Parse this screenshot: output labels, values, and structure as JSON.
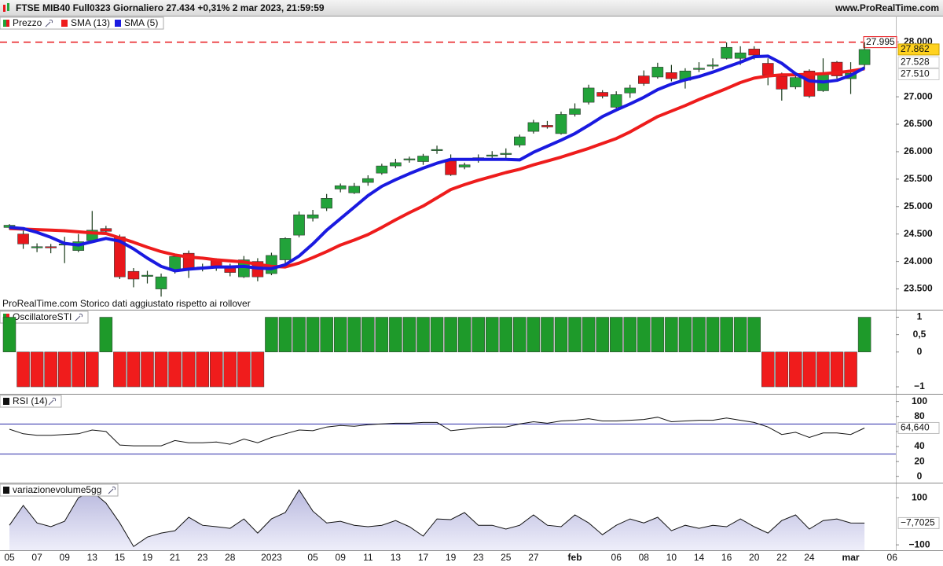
{
  "header": {
    "title": "FTSE MIB40 Full0323 Giornaliero 27.434 +0,31% 2 mar 2023, 21:59:59",
    "site": "www.ProRealTime.com",
    "note": "ProRealTime.com  Storico dati aggiustato rispetto ai rollover"
  },
  "chart_data": [
    {
      "type": "candlestick",
      "title": "Prezzo",
      "up_color": "#22a33a",
      "down_color": "#e8161b",
      "categories": [
        "05",
        null,
        "07",
        null,
        "09",
        null,
        "13",
        null,
        "15",
        null,
        "19",
        null,
        "21",
        null,
        "23",
        null,
        "28",
        null,
        null,
        "2023",
        null,
        null,
        "05",
        null,
        "09",
        null,
        "11",
        null,
        "13",
        null,
        "17",
        null,
        "19",
        null,
        "23",
        null,
        "25",
        null,
        "27",
        null,
        null,
        "feb",
        null,
        null,
        "06",
        null,
        "08",
        null,
        "10",
        null,
        "14",
        null,
        "16",
        null,
        "20",
        null,
        "22",
        null,
        "24",
        null,
        null,
        "mar",
        null,
        null,
        "06"
      ],
      "open": [
        24620,
        24500,
        24250,
        24270,
        24300,
        24200,
        24380,
        24600,
        24450,
        23820,
        23740,
        23500,
        23840,
        24150,
        23880,
        24030,
        23900,
        23720,
        24000,
        23780,
        24030,
        24480,
        24790,
        24970,
        25320,
        25250,
        25440,
        25610,
        25740,
        25850,
        25820,
        26030,
        25830,
        25720,
        25870,
        25930,
        25960,
        26120,
        26370,
        26480,
        26330,
        26680,
        26900,
        27080,
        26810,
        27070,
        27380,
        27360,
        27440,
        27300,
        27500,
        27560,
        27700,
        27700,
        27870,
        27610,
        27370,
        27180,
        27470,
        27110,
        27630,
        27330,
        27585,
        null,
        null
      ],
      "high": [
        24680,
        24560,
        24330,
        24320,
        24450,
        24500,
        24920,
        24650,
        24490,
        23880,
        23830,
        23780,
        24120,
        24200,
        23960,
        24060,
        23960,
        24100,
        24060,
        24160,
        24440,
        24910,
        24940,
        25230,
        25420,
        25430,
        25570,
        25780,
        25870,
        25910,
        25960,
        26110,
        25950,
        25800,
        25950,
        26010,
        26060,
        26310,
        26580,
        26560,
        26730,
        26880,
        27220,
        27120,
        27100,
        27220,
        27480,
        27620,
        27580,
        27520,
        27630,
        27700,
        27990,
        27920,
        27920,
        27700,
        27440,
        27420,
        27500,
        27700,
        27650,
        27630,
        27995,
        null,
        null
      ],
      "low": [
        24580,
        24230,
        24170,
        24150,
        23970,
        24170,
        24380,
        24490,
        23680,
        23530,
        23600,
        23360,
        23780,
        23700,
        23820,
        23830,
        23730,
        23700,
        23640,
        23750,
        23950,
        24440,
        24730,
        24920,
        25260,
        25230,
        25380,
        25580,
        25700,
        25800,
        25760,
        25960,
        25560,
        25680,
        25800,
        25880,
        25850,
        26080,
        26330,
        26420,
        26310,
        26640,
        26860,
        26970,
        26790,
        26980,
        27200,
        27330,
        27280,
        27150,
        27450,
        27500,
        27680,
        27580,
        27680,
        27210,
        26930,
        27140,
        26980,
        27090,
        27330,
        27050,
        27510,
        null,
        null
      ],
      "close": [
        24660,
        24320,
        24270,
        24250,
        24320,
        24360,
        24570,
        24550,
        23720,
        23680,
        23750,
        23720,
        24090,
        23860,
        23900,
        23890,
        23800,
        24030,
        23720,
        24110,
        24420,
        24850,
        24850,
        25150,
        25380,
        25370,
        25510,
        25740,
        25800,
        25870,
        25920,
        26040,
        25580,
        25760,
        25890,
        25940,
        25970,
        26270,
        26530,
        26450,
        26680,
        26780,
        27160,
        27010,
        27040,
        27160,
        27240,
        27540,
        27330,
        27470,
        27520,
        27580,
        27900,
        27800,
        27760,
        27400,
        27140,
        27350,
        27010,
        27410,
        27380,
        27430,
        27862,
        null,
        null
      ],
      "last_label": "27.862",
      "lines": [
        {
          "name": "SMA (13)",
          "color": "#ee1c1c",
          "last_label": "27.510",
          "values": [
            24600,
            24590,
            24580,
            24570,
            24560,
            24540,
            24520,
            24510,
            24430,
            24350,
            24260,
            24180,
            24120,
            24080,
            24060,
            24030,
            24010,
            23990,
            23950,
            23910,
            23900,
            23970,
            24070,
            24180,
            24300,
            24390,
            24490,
            24620,
            24760,
            24890,
            25010,
            25160,
            25310,
            25400,
            25480,
            25550,
            25620,
            25680,
            25760,
            25830,
            25900,
            25980,
            26060,
            26150,
            26240,
            26360,
            26500,
            26640,
            26740,
            26840,
            26950,
            27050,
            27150,
            27260,
            27340,
            27380,
            27400,
            27400,
            27410,
            27420,
            27440,
            27470,
            27510,
            null,
            null
          ]
        },
        {
          "name": "SMA (5)",
          "color": "#1a1ae0",
          "last_label": "27.528",
          "values": [
            24620,
            24600,
            24530,
            24440,
            24330,
            24300,
            24360,
            24420,
            24370,
            24230,
            24060,
            23910,
            23830,
            23860,
            23880,
            23900,
            23900,
            23910,
            23880,
            23870,
            23940,
            24100,
            24320,
            24570,
            24780,
            24990,
            25200,
            25370,
            25490,
            25600,
            25700,
            25790,
            25860,
            25860,
            25860,
            25860,
            25860,
            25850,
            25990,
            26100,
            26210,
            26330,
            26480,
            26640,
            26760,
            26870,
            26990,
            27130,
            27230,
            27310,
            27370,
            27450,
            27540,
            27630,
            27730,
            27740,
            27610,
            27420,
            27290,
            27270,
            27300,
            27390,
            27528,
            null,
            null
          ]
        }
      ],
      "reference_line": {
        "value": 27995,
        "label": "27.995",
        "color": "#e8161b"
      },
      "ylim": [
        23150,
        28190
      ],
      "yticks": [
        {
          "value": 23500,
          "label": "23.500"
        },
        {
          "value": 24000,
          "label": "24.000"
        },
        {
          "value": 24500,
          "label": "24.500"
        },
        {
          "value": 25000,
          "label": "25.000"
        },
        {
          "value": 25500,
          "label": "25.500"
        },
        {
          "value": 26000,
          "label": "26.000"
        },
        {
          "value": 26500,
          "label": "26.500"
        },
        {
          "value": 27000,
          "label": "27.000"
        },
        {
          "value": 28000,
          "label": "28.000"
        }
      ]
    },
    {
      "type": "bar",
      "title": "OscillatoreSTI",
      "pos_color": "#1e9a2a",
      "neg_color": "#f01c1c",
      "values": [
        1,
        -1,
        -1,
        -1,
        -1,
        -1,
        -1,
        1,
        -1,
        -1,
        -1,
        -1,
        -1,
        -1,
        -1,
        -1,
        -1,
        -1,
        -1,
        1,
        1,
        1,
        1,
        1,
        1,
        1,
        1,
        1,
        1,
        1,
        1,
        1,
        1,
        1,
        1,
        1,
        1,
        1,
        1,
        1,
        1,
        1,
        1,
        1,
        1,
        1,
        1,
        1,
        1,
        1,
        1,
        1,
        1,
        1,
        1,
        -1,
        -1,
        -1,
        -1,
        -1,
        -1,
        -1,
        1,
        null,
        null
      ],
      "ylim": [
        -1.18,
        1.17
      ],
      "yticks": [
        1,
        {
          "value": 0.5,
          "label": "0,5"
        },
        0,
        {
          "value": -1,
          "label": "−1"
        }
      ]
    },
    {
      "type": "line",
      "title": "RSI (14)",
      "color": "#111111",
      "last_label": "64,640",
      "levels": [
        70,
        30
      ],
      "level_color": "#2a2aa8",
      "values": [
        63,
        57,
        55,
        55,
        56,
        57,
        62,
        60,
        42,
        41,
        41,
        41,
        48,
        45,
        45,
        46,
        43,
        50,
        45,
        52,
        57,
        62,
        61,
        66,
        68,
        67,
        69,
        70,
        71,
        71,
        72,
        72,
        61,
        63,
        65,
        66,
        66,
        70,
        73,
        71,
        74,
        75,
        77,
        74,
        74,
        75,
        76,
        79,
        73,
        74,
        75,
        75,
        78,
        75,
        72,
        66,
        56,
        59,
        52,
        58,
        58,
        56,
        64.64,
        null,
        null
      ],
      "ylim": [
        -6,
        108
      ],
      "yticks": [
        100,
        80,
        60,
        40,
        20,
        0
      ]
    },
    {
      "type": "area",
      "title": "variazionevolume5gg",
      "color": "#111111",
      "fill": "#c8c8e6",
      "last_label": "−7,7025",
      "values": [
        -17,
        67,
        -7,
        -23,
        0,
        100,
        127,
        77,
        -7,
        -107,
        -67,
        -50,
        -40,
        17,
        -17,
        -23,
        -30,
        10,
        -50,
        10,
        37,
        133,
        43,
        -7,
        0,
        -17,
        -23,
        -17,
        3,
        -23,
        -63,
        10,
        7,
        37,
        -17,
        -17,
        -33,
        -17,
        27,
        -17,
        -23,
        27,
        -7,
        -57,
        -17,
        10,
        -7,
        17,
        -40,
        -17,
        -30,
        -17,
        -23,
        10,
        -23,
        -50,
        3,
        27,
        -33,
        3,
        10,
        -7,
        -7.7025,
        null,
        null
      ],
      "ylim": [
        -123,
        157
      ],
      "yticks": [
        100,
        {
          "value": -100,
          "label": "−100"
        }
      ]
    }
  ]
}
